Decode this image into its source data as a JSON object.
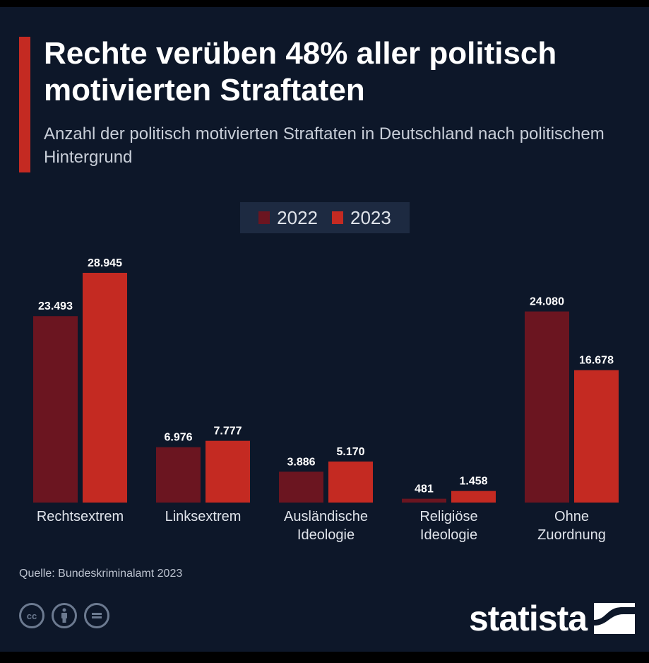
{
  "title": "Rechte verüben 48% aller politisch motivierten Straftaten",
  "subtitle": "Anzahl der politisch motivierten Straftaten in Deutschland nach politischem Hintergrund",
  "source": "Quelle: Bundeskriminalamt 2023",
  "brand": "statista",
  "license_icons": [
    "cc-icon",
    "by-icon",
    "nd-icon"
  ],
  "colors": {
    "background": "#0d1729",
    "series_2022": "#6b1520",
    "series_2023": "#c42a22",
    "accent": "#c42a22"
  },
  "chart_data": {
    "type": "bar",
    "categories": [
      "Rechtsextrem",
      "Linksextrem",
      "Ausländische Ideologie",
      "Religiöse Ideologie",
      "Ohne Zuordnung"
    ],
    "category_lines": [
      [
        "Rechtsextrem"
      ],
      [
        "Linksextrem"
      ],
      [
        "Ausländische",
        "Ideologie"
      ],
      [
        "Religiöse",
        "Ideologie"
      ],
      [
        "Ohne",
        "Zuordnung"
      ]
    ],
    "series": [
      {
        "name": "2022",
        "values": [
          23493,
          6976,
          3886,
          481,
          24080
        ],
        "labels": [
          "23.493",
          "6.976",
          "3.886",
          "481",
          "24.080"
        ]
      },
      {
        "name": "2023",
        "values": [
          28945,
          7777,
          5170,
          1458,
          16678
        ],
        "labels": [
          "28.945",
          "7.777",
          "5.170",
          "1.458",
          "16.678"
        ]
      }
    ],
    "legend": "top-center",
    "grid": false,
    "ylim": [
      0,
      28945
    ]
  }
}
